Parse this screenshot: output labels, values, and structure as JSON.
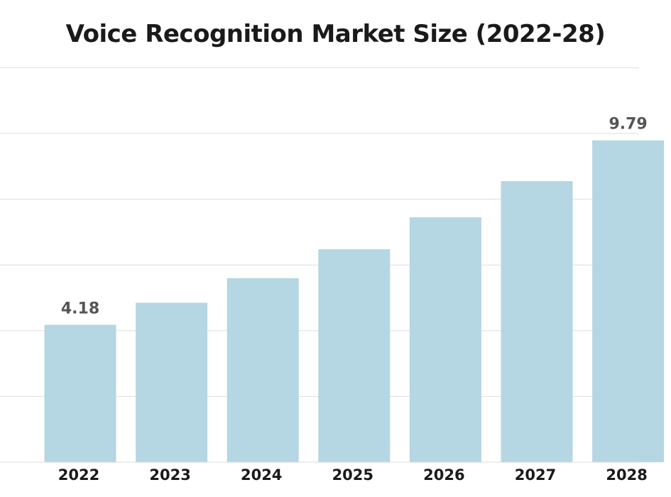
{
  "chart_data": {
    "type": "bar",
    "title": "Voice Recognition Market Size (2022-28)",
    "categories": [
      "2022",
      "2023",
      "2024",
      "2025",
      "2026",
      "2027",
      "2028"
    ],
    "values": [
      4.18,
      4.85,
      5.6,
      6.48,
      7.45,
      8.55,
      9.79
    ],
    "data_labels": [
      "4.18",
      "",
      "",
      "",
      "",
      "",
      "9.79"
    ],
    "ylim": [
      0,
      12
    ],
    "grid": true,
    "colors": {
      "bar": "#b5d6e3",
      "grid": "#dedede",
      "label": "#555555",
      "tick": "#1a1a1a"
    }
  }
}
